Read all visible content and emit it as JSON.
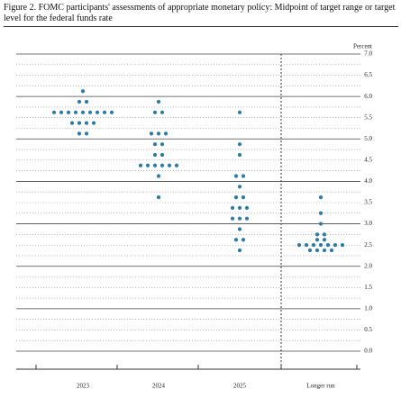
{
  "chart_data": {
    "type": "dot",
    "title": "Figure 2.  FOMC participants' assessments of appropriate monetary policy:  Midpoint of target range or target level for the federal funds rate",
    "y_label": "Percent",
    "categories": [
      "2023",
      "2024",
      "2025",
      "Longer run"
    ],
    "dots": [
      [
        6.125,
        5.875,
        5.875,
        5.625,
        5.625,
        5.625,
        5.625,
        5.625,
        5.625,
        5.625,
        5.625,
        5.625,
        5.375,
        5.375,
        5.375,
        5.375,
        5.125,
        5.125
      ],
      [
        5.875,
        5.625,
        5.625,
        5.125,
        5.125,
        5.125,
        4.875,
        4.875,
        4.625,
        4.625,
        4.375,
        4.375,
        4.375,
        4.375,
        4.375,
        4.375,
        4.125,
        3.625
      ],
      [
        5.625,
        4.875,
        4.625,
        4.125,
        4.125,
        3.875,
        3.625,
        3.625,
        3.375,
        3.375,
        3.375,
        3.125,
        3.125,
        3.125,
        2.875,
        2.625,
        2.625,
        2.375
      ],
      [
        3.625,
        3.25,
        3.0,
        2.75,
        2.75,
        2.625,
        2.625,
        2.5,
        2.5,
        2.5,
        2.5,
        2.5,
        2.5,
        2.5,
        2.375,
        2.375,
        2.375,
        2.375
      ]
    ],
    "color": "#2a7ba6",
    "ylim": [
      0,
      7
    ],
    "yticks": [
      {
        "value": 0,
        "label": "0.0"
      },
      0.5,
      {
        "value": 1,
        "label": "1.0"
      },
      1.5,
      {
        "value": 2,
        "label": "2.0"
      },
      2.5,
      {
        "value": 3,
        "label": "3.0"
      },
      3.5,
      {
        "value": 4,
        "label": "4.0"
      },
      4.5,
      {
        "value": 5,
        "label": "5.0"
      },
      5.5,
      {
        "value": 6,
        "label": "6.0"
      },
      6.5,
      {
        "value": 7,
        "label": "7.0"
      }
    ]
  }
}
